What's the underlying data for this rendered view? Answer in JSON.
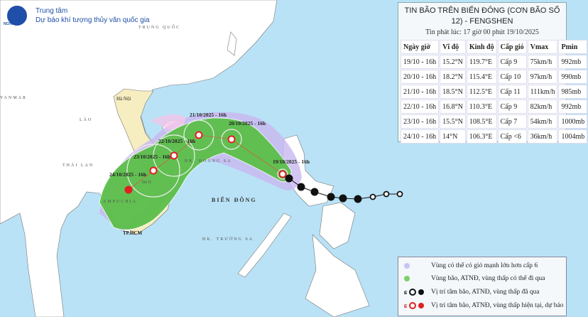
{
  "header": {
    "org_line1": "Trung tâm",
    "org_line2": "Dự báo khí tượng thủy văn quốc gia",
    "logo_text": "NCHMF"
  },
  "panel": {
    "title": "TIN BÃO TRÊN BIỂN ĐÔNG (CƠN BÃO SỐ 12) - FENGSHEN",
    "issued": "Tin phát lúc: 17 giờ 00 phút 19/10/2025",
    "columns": [
      "Ngày giờ",
      "Vĩ độ",
      "Kinh độ",
      "Cấp gió",
      "Vmax",
      "Pmin"
    ],
    "rows": [
      [
        "19/10 - 16h",
        "15.2°N",
        "119.7°E",
        "Cấp 9",
        "75km/h",
        "992mb"
      ],
      [
        "20/10 - 16h",
        "18.2°N",
        "115.4°E",
        "Cấp 10",
        "97km/h",
        "990mb"
      ],
      [
        "21/10 - 16h",
        "18.5°N",
        "112.5°E",
        "Cấp 11",
        "111km/h",
        "985mb"
      ],
      [
        "22/10 - 16h",
        "16.8°N",
        "110.3°E",
        "Cấp 9",
        "82km/h",
        "992mb"
      ],
      [
        "23/10 - 16h",
        "15.5°N",
        "108.5°E",
        "Cấp 7",
        "54km/h",
        "1000mb"
      ],
      [
        "24/10 - 16h",
        "14°N",
        "106.3°E",
        "Cấp <6",
        "36km/h",
        "1004mb"
      ]
    ]
  },
  "map": {
    "places": {
      "china": "TRUNG QUỐC",
      "myanmar": "YANMAR",
      "laos": "LÀO",
      "thailand": "THÁI LAN",
      "cambodia": "AMPUCHIA",
      "hanoi": "Hà Nội",
      "hcm": "TP.HCM",
      "danang": "Đà N",
      "hoangsa": "ĐK. HOÀNG SA",
      "truongsa": "ĐK. TRƯỜNG SA",
      "biendong": "BIỂN ĐÔNG"
    },
    "forecast_labels": [
      "19/10/2025 - 16h",
      "20/10/2025 - 16h",
      "21/10/2025 - 16h",
      "22/10/2025 - 16h",
      "23/10/2025 - 16h",
      "24/10/2025 - 16h"
    ]
  },
  "legend": {
    "items": [
      "Vùng có thể có gió mạnh lớn hơn cấp 6",
      "Vùng bão, ATNĐ, vùng thấp có thể đi qua",
      "Vị trí tâm bão, ATNĐ, vùng thấp đã qua",
      "Vị trí tâm bão, ATNĐ, vùng thấp hiện tại, dự báo"
    ]
  },
  "colors": {
    "sea": "#b9e2f6",
    "risk_zone": "#c9b8f0",
    "storm_zone": "#5cbf4a",
    "forecast": "#e02020",
    "past": "#111111",
    "vietnam": "#f6eec0"
  }
}
